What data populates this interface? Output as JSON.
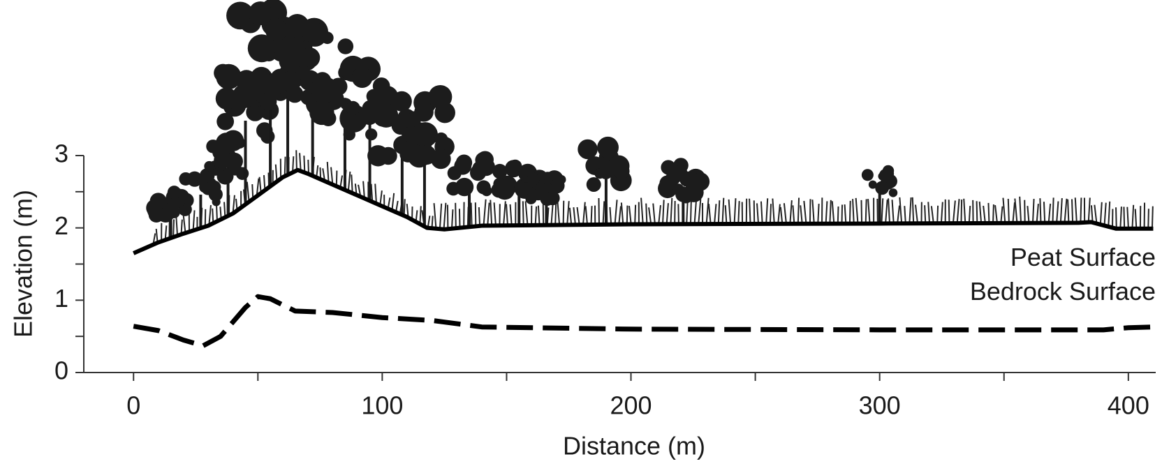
{
  "chart_data": {
    "type": "line",
    "xlabel": "Distance (m)",
    "ylabel": "Elevation (m)",
    "xlim": [
      -20,
      411
    ],
    "ylim": [
      0,
      3
    ],
    "xticks": [
      0,
      100,
      200,
      300,
      400
    ],
    "xminor_ticks": [
      50,
      150,
      250,
      350
    ],
    "yticks": [
      0,
      1,
      2,
      3
    ],
    "yminor_ticks": [
      0.5,
      1.5,
      2.5
    ],
    "series": [
      {
        "name": "Peat Surface",
        "color": "#000000",
        "style": "solid",
        "x": [
          0,
          10,
          20,
          30,
          40,
          50,
          60,
          66,
          70,
          80,
          90,
          100,
          110,
          118,
          125,
          140,
          200,
          300,
          380,
          385,
          395,
          410
        ],
        "values": [
          1.65,
          1.8,
          1.92,
          2.03,
          2.2,
          2.45,
          2.7,
          2.8,
          2.75,
          2.6,
          2.45,
          2.3,
          2.15,
          2.0,
          1.98,
          2.03,
          2.05,
          2.06,
          2.07,
          2.08,
          1.99,
          1.99
        ]
      },
      {
        "name": "Bedrock Surface",
        "color": "#000000",
        "style": "dashed",
        "x": [
          0,
          10,
          20,
          28,
          35,
          45,
          50,
          55,
          65,
          80,
          100,
          120,
          140,
          200,
          300,
          390,
          400,
          410
        ],
        "values": [
          0.64,
          0.58,
          0.45,
          0.37,
          0.5,
          0.9,
          1.05,
          1.02,
          0.85,
          0.83,
          0.76,
          0.72,
          0.63,
          0.6,
          0.59,
          0.59,
          0.62,
          0.63
        ]
      }
    ]
  }
}
